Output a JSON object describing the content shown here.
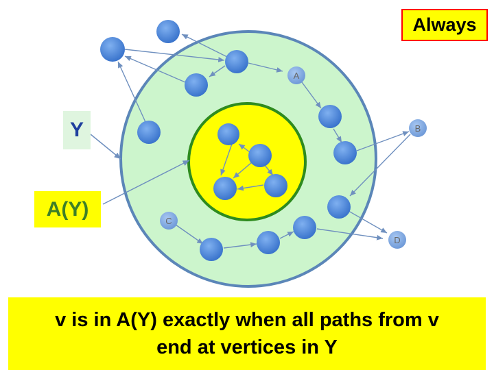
{
  "badge": {
    "text": "Always"
  },
  "labels": {
    "y": "Y",
    "ay": "A(Y)"
  },
  "caption": {
    "line1": "v is in A(Y) exactly when all paths from v",
    "line2": "end at vertices in Y"
  },
  "nodes": {
    "A": "A",
    "B": "B",
    "C": "C",
    "D": "D"
  },
  "colors": {
    "outer_fill": "#ccf5cc",
    "outer_stroke": "#5b86b8",
    "inner_fill": "#ffff00",
    "inner_stroke": "#2e8b1e",
    "node_fill": "#4b87dd",
    "arrow": "#6f90bf",
    "badge_border": "#ff0000"
  }
}
